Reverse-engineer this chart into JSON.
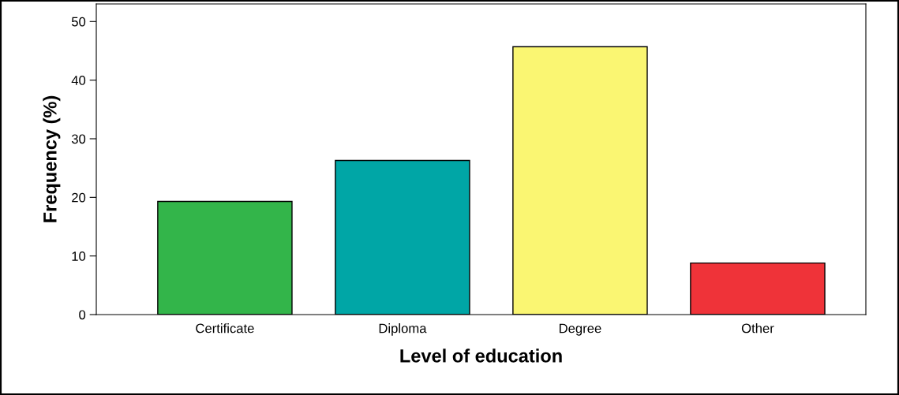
{
  "chart_data": {
    "type": "bar",
    "xlabel": "Level of education",
    "ylabel": "Frequency (%)",
    "categories": [
      "Certificate",
      "Diploma",
      "Degree",
      "Other"
    ],
    "values": [
      19.3,
      26.3,
      45.7,
      8.8
    ],
    "colors": [
      "#33b54a",
      "#00a6a6",
      "#faf672",
      "#ef3339"
    ],
    "ylim": [
      0,
      53
    ],
    "yticks": [
      0,
      10,
      20,
      30,
      40,
      50
    ],
    "grid": false
  }
}
